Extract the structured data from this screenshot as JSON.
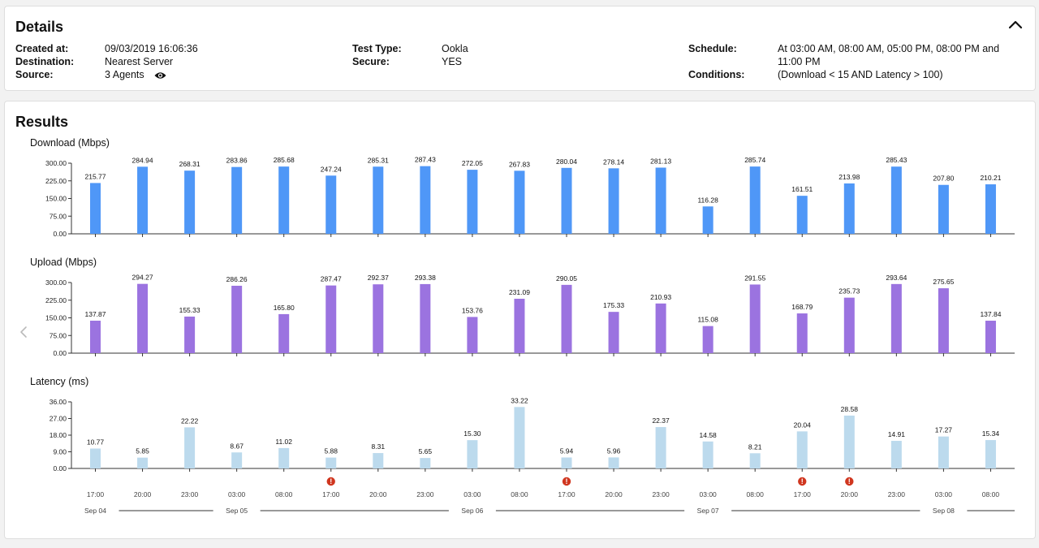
{
  "details": {
    "title": "Details",
    "created_at_label": "Created at:",
    "created_at": "09/03/2019 16:06:36",
    "destination_label": "Destination:",
    "destination": "Nearest Server",
    "source_label": "Source:",
    "source": "3 Agents",
    "test_type_label": "Test Type:",
    "test_type": "Ookla",
    "secure_label": "Secure:",
    "secure": "YES",
    "schedule_label": "Schedule:",
    "schedule_line1": "At 03:00 AM, 08:00 AM, 05:00 PM, 08:00 PM and",
    "schedule_line2": "11:00 PM",
    "conditions_label": "Conditions:",
    "conditions": "(Download < 15 AND Latency > 100)"
  },
  "results": {
    "title": "Results",
    "download_title": "Download (Mbps)",
    "upload_title": "Upload (Mbps)",
    "latency_title": "Latency (ms)"
  },
  "icons": {
    "collapse": "chevron-up-icon",
    "source": "eye-icon",
    "nav": "chevron-left-icon",
    "alert": "alert-icon"
  },
  "colors": {
    "download": "#4f97f7",
    "upload": "#9b73e0",
    "latency": "#bcdaed",
    "alert": "#d0361f"
  },
  "chart_data": [
    {
      "type": "bar",
      "ylabel": "Download (Mbps)",
      "ylim": [
        0,
        300
      ],
      "yticks": [
        "0.00",
        "75.00",
        "150.00",
        "225.00",
        "300.00"
      ],
      "categories": [
        "17:00",
        "20:00",
        "23:00",
        "03:00",
        "08:00",
        "17:00",
        "20:00",
        "23:00",
        "03:00",
        "08:00",
        "17:00",
        "20:00",
        "23:00",
        "03:00",
        "08:00",
        "17:00",
        "20:00",
        "23:00",
        "03:00",
        "08:00"
      ],
      "values": [
        215.77,
        284.94,
        268.31,
        283.86,
        285.68,
        247.24,
        285.31,
        287.43,
        272.05,
        267.83,
        280.04,
        278.14,
        281.13,
        116.28,
        285.74,
        161.51,
        213.98,
        285.43,
        207.8,
        210.21
      ],
      "labels": [
        "215.77",
        "284.94",
        "268.31",
        "283.86",
        "285.68",
        "247.24",
        "285.31",
        "287.43",
        "272.05",
        "267.83",
        "280.04",
        "278.14",
        "281.13",
        "116.28",
        "285.74",
        "161.51",
        "213.98",
        "285.43",
        "207.80",
        "210.21"
      ]
    },
    {
      "type": "bar",
      "ylabel": "Upload (Mbps)",
      "ylim": [
        0,
        300
      ],
      "yticks": [
        "0.00",
        "75.00",
        "150.00",
        "225.00",
        "300.00"
      ],
      "categories": [
        "17:00",
        "20:00",
        "23:00",
        "03:00",
        "08:00",
        "17:00",
        "20:00",
        "23:00",
        "03:00",
        "08:00",
        "17:00",
        "20:00",
        "23:00",
        "03:00",
        "08:00",
        "17:00",
        "20:00",
        "23:00",
        "03:00",
        "08:00"
      ],
      "values": [
        137.87,
        294.27,
        155.33,
        286.26,
        165.8,
        287.47,
        292.37,
        293.38,
        153.76,
        231.09,
        290.05,
        175.33,
        210.93,
        115.08,
        291.55,
        168.79,
        235.73,
        293.64,
        275.65,
        137.84
      ],
      "labels": [
        "137.87",
        "294.27",
        "155.33",
        "286.26",
        "165.80",
        "287.47",
        "292.37",
        "293.38",
        "153.76",
        "231.09",
        "290.05",
        "175.33",
        "210.93",
        "115.08",
        "291.55",
        "168.79",
        "235.73",
        "293.64",
        "275.65",
        "137.84"
      ]
    },
    {
      "type": "bar",
      "ylabel": "Latency (ms)",
      "ylim": [
        0,
        36
      ],
      "yticks": [
        "0.00",
        "9.00",
        "18.00",
        "27.00",
        "36.00"
      ],
      "categories": [
        "17:00",
        "20:00",
        "23:00",
        "03:00",
        "08:00",
        "17:00",
        "20:00",
        "23:00",
        "03:00",
        "08:00",
        "17:00",
        "20:00",
        "23:00",
        "03:00",
        "08:00",
        "17:00",
        "20:00",
        "23:00",
        "03:00",
        "08:00"
      ],
      "values": [
        10.77,
        5.85,
        22.22,
        8.67,
        11.02,
        5.88,
        8.31,
        5.65,
        15.3,
        33.22,
        5.94,
        5.96,
        22.37,
        14.58,
        8.21,
        20.04,
        28.58,
        14.91,
        17.27,
        15.34
      ],
      "labels": [
        "10.77",
        "5.85",
        "22.22",
        "8.67",
        "11.02",
        "5.88",
        "8.31",
        "5.65",
        "15.30",
        "33.22",
        "5.94",
        "5.96",
        "22.37",
        "14.58",
        "8.21",
        "20.04",
        "28.58",
        "14.91",
        "17.27",
        "15.34"
      ],
      "alerts": [
        5,
        10,
        15,
        16
      ]
    }
  ],
  "x_axis": {
    "times": [
      "17:00",
      "20:00",
      "23:00",
      "03:00",
      "08:00",
      "17:00",
      "20:00",
      "23:00",
      "03:00",
      "08:00",
      "17:00",
      "20:00",
      "23:00",
      "03:00",
      "08:00",
      "17:00",
      "20:00",
      "23:00",
      "03:00",
      "08:00"
    ],
    "dates": [
      {
        "label": "Sep 04",
        "start_index": 0
      },
      {
        "label": "Sep 05",
        "start_index": 3
      },
      {
        "label": "Sep 06",
        "start_index": 8
      },
      {
        "label": "Sep 07",
        "start_index": 13
      },
      {
        "label": "Sep 08",
        "start_index": 18
      }
    ]
  }
}
